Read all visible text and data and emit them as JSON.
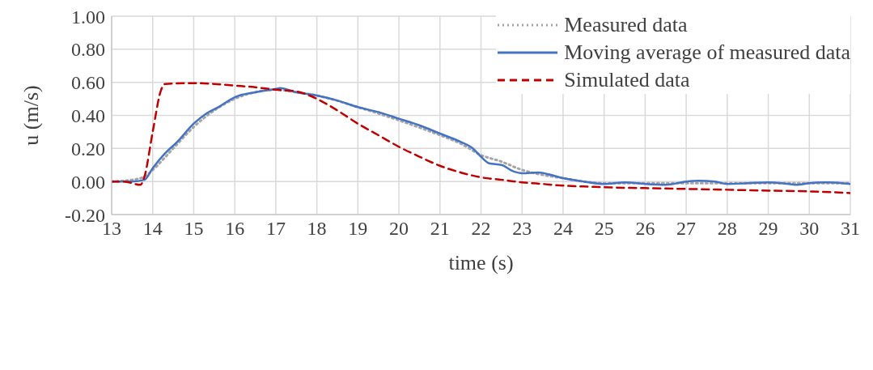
{
  "chart_data": {
    "type": "line",
    "xlabel": "time (s)",
    "ylabel": "u (m/s)",
    "xlim": [
      13,
      31
    ],
    "xticks": [
      13,
      14,
      15,
      16,
      17,
      18,
      19,
      20,
      21,
      22,
      23,
      24,
      25,
      26,
      27,
      28,
      29,
      30,
      31
    ],
    "ylim": [
      -0.2,
      1.0
    ],
    "yticks": [
      {
        "value": -0.2,
        "label": "-0.20"
      },
      {
        "value": 0,
        "label": "0.00"
      },
      {
        "value": 0.2,
        "label": "0.20"
      },
      {
        "value": 0.4,
        "label": "0.40"
      },
      {
        "value": 0.6,
        "label": "0.60"
      },
      {
        "value": 0.8,
        "label": "0.80"
      },
      {
        "value": 1.0,
        "label": "1.00"
      }
    ],
    "grid": true,
    "legend": "top right",
    "marker": "none",
    "series": [
      {
        "name": "Measured data",
        "color": "#a5a5a5",
        "line_style": "dotted",
        "x": [
          13,
          13.5,
          13.8,
          14,
          14.5,
          15,
          15.5,
          16,
          16.5,
          17,
          17.5,
          18,
          19,
          20,
          21,
          21.5,
          22,
          22.5,
          23,
          23.5,
          24,
          24.5,
          25,
          26,
          27,
          28,
          29,
          30,
          31
        ],
        "values": [
          0,
          0.01,
          0.03,
          0.07,
          0.2,
          0.33,
          0.43,
          0.5,
          0.54,
          0.555,
          0.54,
          0.52,
          0.45,
          0.37,
          0.28,
          0.23,
          0.16,
          0.12,
          0.07,
          0.04,
          0.02,
          0,
          -0.01,
          -0.01,
          -0.01,
          -0.01,
          -0.01,
          -0.01,
          -0.01
        ]
      },
      {
        "name": "Moving average of measured data",
        "color": "#4472c4",
        "line_style": "solid",
        "x": [
          13,
          13.5,
          13.8,
          14,
          14.3,
          14.6,
          15,
          15.3,
          15.6,
          16,
          16.5,
          17,
          17.1,
          17.5,
          18,
          18.5,
          19,
          19.5,
          20,
          20.5,
          21,
          21.5,
          21.8,
          22,
          22.2,
          22.5,
          22.8,
          23,
          23.4,
          23.7,
          24,
          24.5,
          25,
          25.5,
          26,
          26.5,
          27,
          27.3,
          27.7,
          28,
          28.5,
          29,
          29.5,
          29.7,
          30,
          30.5,
          31
        ],
        "values": [
          0,
          0,
          0.01,
          0.08,
          0.17,
          0.24,
          0.35,
          0.41,
          0.45,
          0.51,
          0.54,
          0.56,
          0.565,
          0.54,
          0.52,
          0.49,
          0.45,
          0.42,
          0.38,
          0.34,
          0.29,
          0.24,
          0.2,
          0.15,
          0.11,
          0.1,
          0.06,
          0.05,
          0.055,
          0.04,
          0.02,
          0,
          -0.015,
          -0.005,
          -0.015,
          -0.02,
          0,
          0.005,
          0,
          -0.015,
          -0.01,
          -0.005,
          -0.015,
          -0.02,
          -0.01,
          -0.005,
          -0.015
        ]
      },
      {
        "name": "Simulated data",
        "color": "#c00000",
        "line_style": "dashed",
        "x": [
          13,
          13.3,
          13.7,
          13.8,
          14,
          14.2,
          14.3,
          15,
          15.5,
          16,
          16.5,
          17,
          17.5,
          18,
          18.5,
          19,
          19.5,
          20,
          20.5,
          21,
          21.5,
          22,
          22.5,
          23,
          23.5,
          24,
          24.5,
          25,
          26,
          27,
          28,
          29,
          30,
          31
        ],
        "values": [
          0,
          0,
          -0.02,
          0.03,
          0.3,
          0.55,
          0.59,
          0.595,
          0.59,
          0.58,
          0.57,
          0.555,
          0.545,
          0.5,
          0.43,
          0.35,
          0.28,
          0.21,
          0.15,
          0.095,
          0.055,
          0.025,
          0.01,
          -0.005,
          -0.015,
          -0.025,
          -0.03,
          -0.035,
          -0.04,
          -0.045,
          -0.05,
          -0.055,
          -0.06,
          -0.07
        ]
      }
    ]
  }
}
